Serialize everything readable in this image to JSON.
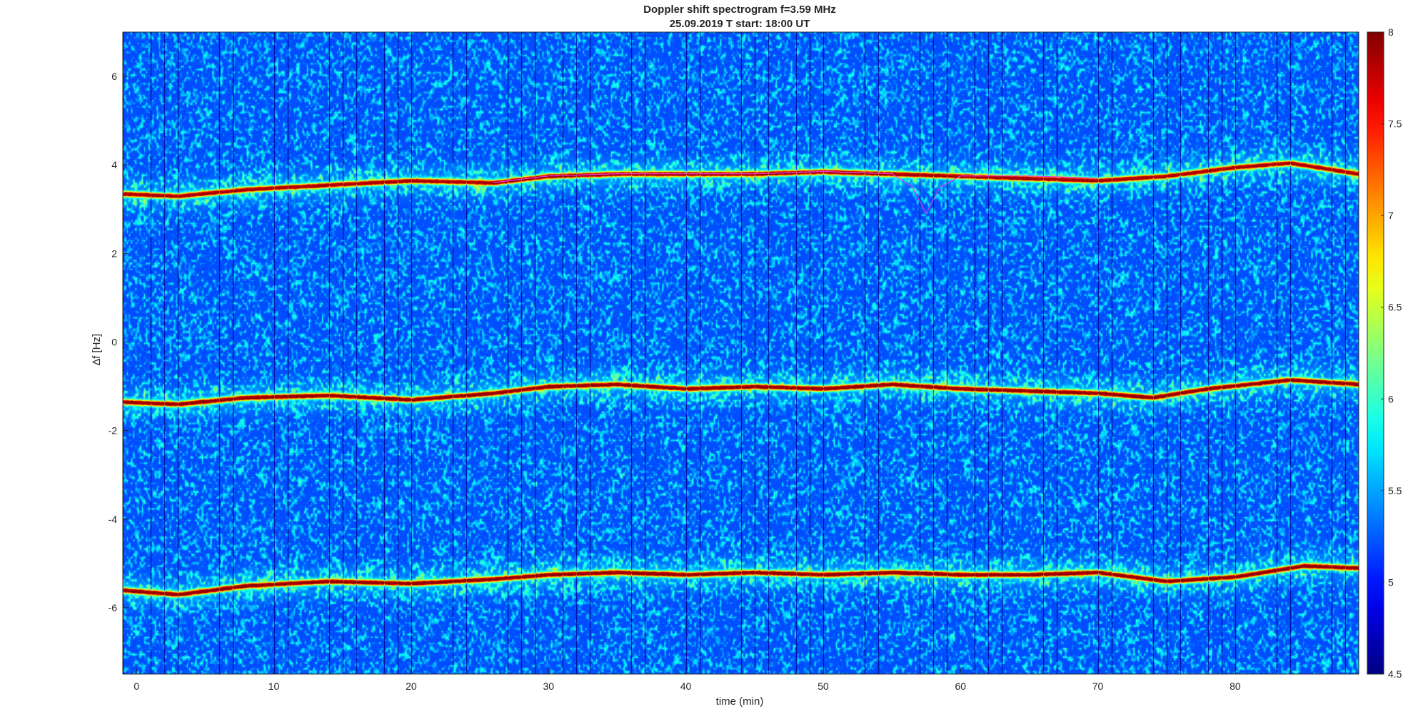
{
  "chart_data": {
    "type": "heatmap",
    "title": "Doppler shift spectrogram f=3.59 MHz",
    "subtitle": "25.09.2019    T start: 18:00 UT",
    "xlabel": "time (min)",
    "ylabel": "∆f [Hz]",
    "xlim": [
      -1,
      89
    ],
    "ylim": [
      -7.5,
      7
    ],
    "x_ticks": [
      0,
      10,
      20,
      30,
      40,
      50,
      60,
      70,
      80
    ],
    "y_ticks": [
      -6,
      -4,
      -2,
      0,
      2,
      4,
      6
    ],
    "colorbar": {
      "colormap": "jet",
      "range": [
        4.5,
        8
      ],
      "ticks": [
        4.5,
        5,
        5.5,
        6,
        6.5,
        7,
        7.5,
        8
      ]
    },
    "background_level": 5.2,
    "traces": [
      {
        "x": [
          -1,
          3,
          8,
          14,
          20,
          26,
          30,
          35,
          40,
          45,
          50,
          55,
          60,
          65,
          70,
          75,
          80,
          84,
          89
        ],
        "y": [
          3.35,
          3.3,
          3.45,
          3.55,
          3.65,
          3.6,
          3.75,
          3.8,
          3.8,
          3.8,
          3.85,
          3.8,
          3.75,
          3.7,
          3.65,
          3.75,
          3.95,
          4.05,
          3.8
        ],
        "intensity": 7.8
      },
      {
        "x": [
          -1,
          3,
          8,
          14,
          20,
          26,
          30,
          35,
          40,
          45,
          50,
          55,
          60,
          65,
          70,
          74,
          78,
          84,
          89
        ],
        "y": [
          -1.35,
          -1.4,
          -1.25,
          -1.2,
          -1.3,
          -1.15,
          -1.0,
          -0.95,
          -1.05,
          -1.0,
          -1.05,
          -0.95,
          -1.05,
          -1.1,
          -1.15,
          -1.25,
          -1.05,
          -0.85,
          -0.95
        ],
        "intensity": 7.9
      },
      {
        "x": [
          -1,
          3,
          8,
          14,
          20,
          26,
          30,
          35,
          40,
          45,
          50,
          55,
          60,
          65,
          70,
          75,
          80,
          85,
          89
        ],
        "y": [
          -5.6,
          -5.7,
          -5.5,
          -5.4,
          -5.45,
          -5.35,
          -5.25,
          -5.2,
          -5.25,
          -5.2,
          -5.25,
          -5.2,
          -5.25,
          -5.25,
          -5.2,
          -5.4,
          -5.3,
          -5.05,
          -5.1
        ],
        "intensity": 7.9
      }
    ],
    "overlay_line": {
      "color": "#e23ce6",
      "x": [
        26,
        30,
        35,
        40,
        45,
        50,
        55,
        56.5,
        57.5,
        58.5,
        60,
        65,
        70
      ],
      "y": [
        3.6,
        3.75,
        3.8,
        3.8,
        3.8,
        3.85,
        3.8,
        3.5,
        2.9,
        3.5,
        3.75,
        3.75,
        3.7
      ]
    }
  }
}
